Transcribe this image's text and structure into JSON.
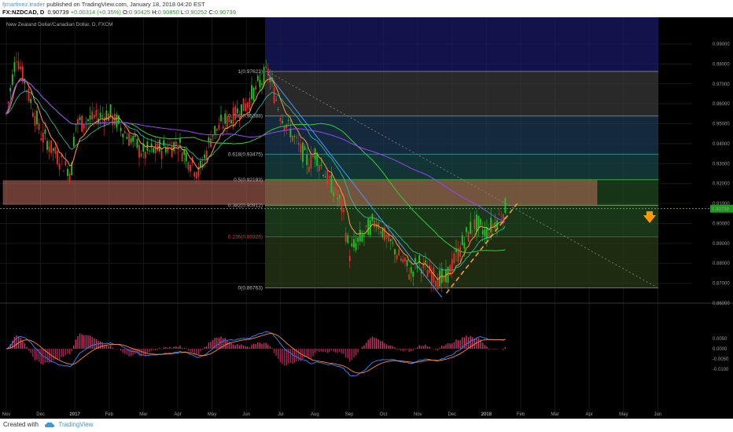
{
  "header": {
    "author": "fjmartinez.trader",
    "published": "published on TradingView.com, January 18, 2018 04:20 EST",
    "symbol": "FX:NZDCAD, D",
    "price": "0.90739",
    "change": "+0.00314 (+0.35%)",
    "open_label": "O:",
    "open": "0.90425",
    "high_label": "H:",
    "high": "0.90850",
    "low_label": "L:",
    "low": "0.90252",
    "close_label": "C:",
    "close": "0.90739"
  },
  "footer": {
    "created_with": "Created with",
    "brand": "TradingView"
  },
  "colors": {
    "up": "#22c522",
    "down": "#e03030",
    "ema_fast": "#ff9933",
    "ma_green": "#33cc33",
    "ma_purple": "#9944ff",
    "ma_blue": "#4499ff",
    "price_line": "#33cc33",
    "arrow": "#ff9900",
    "trend_dash": "#ff9933",
    "macd": "#3388ff",
    "signal": "#ff8833"
  },
  "chart_data": {
    "type": "candlestick",
    "title": "New Zealand Dollar/Canadian Dollar, D, FXCM",
    "y_ticks": [
      "0.99000",
      "0.98000",
      "0.97000",
      "0.96000",
      "0.95000",
      "0.94000",
      "0.93000",
      "0.92000",
      "0.91000",
      "0.90000",
      "0.89000",
      "0.88000",
      "0.87000",
      "0.86000"
    ],
    "x_ticks": [
      "Nov",
      "Dec",
      "2017",
      "Feb",
      "Mar",
      "Apr",
      "May",
      "Jun",
      "Jul",
      "Aug",
      "Sep",
      "Oct",
      "Nov",
      "Dec",
      "2018",
      "Feb",
      "Mar",
      "Apr",
      "May",
      "Jun"
    ],
    "last_price": "0.90739",
    "fib_levels": [
      {
        "label": "1(0.97623)",
        "value": 0.97623
      },
      {
        "label": "0.786(0.95388)",
        "value": 0.95388
      },
      {
        "label": "0.618(0.93475)",
        "value": 0.93475
      },
      {
        "label": "0.5(0.92193)",
        "value": 0.92193
      },
      {
        "label": "0.382(0.90912)",
        "value": 0.90912
      },
      {
        "label": "0.236(0.89326)",
        "value": 0.89326
      },
      {
        "label": "0(0.86763)",
        "value": 0.86763
      }
    ],
    "resistance_zone": [
      0.9095,
      0.9215
    ],
    "key_prices": [
      {
        "date": "2016-11",
        "value": 0.955
      },
      {
        "date": "2016-11-10",
        "value": 0.985
      },
      {
        "date": "2016-12",
        "value": 0.945
      },
      {
        "date": "2016-12-28",
        "value": 0.925
      },
      {
        "date": "2017-01",
        "value": 0.95
      },
      {
        "date": "2017-02",
        "value": 0.955
      },
      {
        "date": "2017-03",
        "value": 0.935
      },
      {
        "date": "2017-04",
        "value": 0.94
      },
      {
        "date": "2017-04-20",
        "value": 0.925
      },
      {
        "date": "2017-05",
        "value": 0.945
      },
      {
        "date": "2017-06",
        "value": 0.96
      },
      {
        "date": "2017-06-20",
        "value": 0.976
      },
      {
        "date": "2017-07",
        "value": 0.955
      },
      {
        "date": "2017-07-25",
        "value": 0.93
      },
      {
        "date": "2017-08",
        "value": 0.935
      },
      {
        "date": "2017-08-25",
        "value": 0.908
      },
      {
        "date": "2017-09",
        "value": 0.885
      },
      {
        "date": "2017-09-25",
        "value": 0.902
      },
      {
        "date": "2017-10",
        "value": 0.895
      },
      {
        "date": "2017-10-25",
        "value": 0.875
      },
      {
        "date": "2017-11",
        "value": 0.88
      },
      {
        "date": "2017-11-25",
        "value": 0.87
      },
      {
        "date": "2017-12",
        "value": 0.88
      },
      {
        "date": "2017-12-20",
        "value": 0.9
      },
      {
        "date": "2018-01",
        "value": 0.895
      },
      {
        "date": "2018-01-18",
        "value": 0.90739
      }
    ],
    "macd_ticks": [
      "0.0050",
      "0.0000",
      "-0.0050",
      "-0.0100"
    ]
  }
}
